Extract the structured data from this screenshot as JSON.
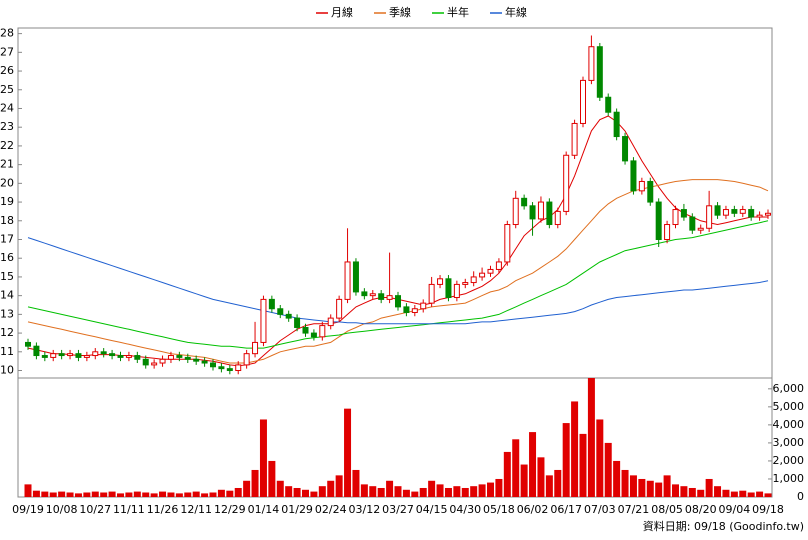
{
  "chart_data": [
    {
      "type": "candlestick",
      "categories": [
        "09/19",
        null,
        null,
        null,
        "10/08",
        null,
        null,
        null,
        "10/27",
        null,
        null,
        null,
        "11/11",
        null,
        null,
        null,
        "11/26",
        null,
        null,
        null,
        "12/11",
        null,
        null,
        null,
        "12/29",
        null,
        null,
        null,
        "01/14",
        null,
        null,
        null,
        "01/29",
        null,
        null,
        null,
        "02/24",
        null,
        null,
        null,
        "03/12",
        null,
        null,
        null,
        "03/27",
        null,
        null,
        null,
        "04/15",
        null,
        null,
        null,
        "04/30",
        null,
        null,
        null,
        "05/18",
        null,
        null,
        null,
        "06/02",
        null,
        null,
        null,
        "06/17",
        null,
        null,
        null,
        "07/03",
        null,
        null,
        null,
        "07/21",
        null,
        null,
        null,
        "08/05",
        null,
        null,
        null,
        "08/20",
        null,
        null,
        null,
        "09/04",
        null,
        null,
        null,
        "09/18"
      ],
      "open": [
        11.5,
        11.3,
        10.8,
        10.7,
        10.9,
        10.8,
        10.9,
        10.7,
        10.8,
        11.0,
        10.9,
        10.8,
        10.7,
        10.8,
        10.6,
        10.3,
        10.4,
        10.6,
        10.8,
        10.7,
        10.6,
        10.5,
        10.4,
        10.2,
        10.1,
        10.0,
        10.3,
        10.9,
        11.5,
        13.8,
        13.3,
        13.0,
        12.8,
        12.3,
        12.0,
        11.8,
        12.4,
        12.8,
        13.8,
        15.8,
        14.2,
        14.0,
        14.1,
        13.8,
        14.0,
        13.4,
        13.1,
        13.3,
        13.6,
        14.6,
        14.9,
        13.9,
        14.6,
        14.7,
        15.0,
        15.2,
        15.4,
        15.8,
        17.8,
        19.2,
        18.8,
        18.1,
        19.0,
        17.8,
        18.5,
        21.5,
        23.2,
        25.5,
        27.3,
        24.6,
        23.8,
        22.5,
        21.2,
        19.6,
        20.1,
        19.0,
        17.0,
        17.8,
        18.6,
        18.2,
        17.5,
        17.6,
        18.8,
        18.3,
        18.6,
        18.4,
        18.6,
        18.2,
        18.3
      ],
      "high": [
        11.7,
        11.5,
        11.0,
        11.1,
        11.1,
        11.1,
        11.1,
        11.0,
        11.2,
        11.2,
        11.1,
        11.0,
        11.0,
        11.0,
        10.8,
        10.6,
        10.8,
        11.0,
        11.0,
        10.9,
        10.8,
        10.7,
        10.6,
        10.4,
        10.3,
        10.5,
        11.1,
        12.6,
        14.0,
        14.0,
        13.5,
        13.2,
        13.0,
        12.5,
        12.2,
        12.6,
        13.0,
        14.0,
        17.6,
        16.0,
        14.4,
        14.3,
        14.3,
        16.3,
        14.2,
        13.6,
        13.5,
        13.8,
        15.0,
        15.1,
        15.1,
        14.8,
        14.9,
        15.3,
        15.5,
        15.6,
        16.0,
        18.0,
        19.6,
        19.4,
        19.0,
        19.3,
        19.2,
        18.7,
        21.7,
        23.4,
        25.7,
        27.9,
        27.5,
        24.8,
        24.0,
        22.7,
        21.4,
        20.3,
        20.3,
        19.2,
        18.0,
        18.8,
        18.9,
        18.4,
        17.8,
        19.6,
        19.0,
        18.8,
        18.8,
        18.8,
        18.8,
        18.5,
        18.6
      ],
      "low": [
        11.1,
        10.6,
        10.5,
        10.5,
        10.6,
        10.6,
        10.5,
        10.5,
        10.6,
        10.7,
        10.6,
        10.5,
        10.5,
        10.4,
        10.1,
        10.1,
        10.2,
        10.4,
        10.5,
        10.4,
        10.3,
        10.2,
        10.0,
        9.9,
        9.8,
        9.8,
        10.1,
        10.7,
        11.3,
        13.1,
        12.8,
        12.6,
        12.1,
        11.8,
        11.6,
        11.6,
        12.2,
        12.6,
        13.6,
        14.0,
        13.8,
        13.8,
        13.6,
        13.6,
        13.2,
        12.9,
        12.9,
        13.1,
        13.4,
        14.4,
        13.7,
        13.7,
        14.4,
        14.5,
        14.8,
        15.0,
        15.2,
        15.6,
        17.6,
        18.6,
        17.2,
        17.9,
        17.6,
        17.6,
        18.3,
        21.3,
        23.0,
        25.3,
        24.4,
        23.6,
        22.3,
        21.0,
        19.4,
        19.4,
        18.8,
        16.6,
        16.8,
        17.6,
        18.0,
        17.3,
        17.3,
        17.4,
        18.1,
        18.1,
        18.2,
        18.2,
        18.0,
        18.0,
        18.1
      ],
      "close": [
        11.3,
        10.8,
        10.7,
        10.9,
        10.8,
        10.9,
        10.7,
        10.8,
        11.0,
        10.9,
        10.8,
        10.7,
        10.8,
        10.6,
        10.3,
        10.4,
        10.6,
        10.8,
        10.7,
        10.6,
        10.5,
        10.4,
        10.2,
        10.1,
        10.0,
        10.3,
        10.9,
        11.5,
        13.8,
        13.3,
        13.0,
        12.8,
        12.3,
        12.0,
        11.8,
        12.4,
        12.8,
        13.8,
        15.8,
        14.2,
        14.0,
        14.1,
        13.8,
        14.0,
        13.4,
        13.1,
        13.3,
        13.6,
        14.6,
        14.9,
        13.9,
        14.6,
        14.7,
        15.0,
        15.2,
        15.4,
        15.8,
        17.8,
        19.2,
        18.8,
        18.1,
        19.0,
        17.8,
        18.5,
        21.5,
        23.2,
        25.5,
        27.3,
        24.6,
        23.8,
        22.5,
        21.2,
        19.6,
        20.1,
        19.0,
        17.0,
        17.8,
        18.6,
        18.2,
        17.5,
        17.6,
        18.8,
        18.3,
        18.6,
        18.4,
        18.6,
        18.2,
        18.3,
        18.4
      ],
      "up_color": "#e00000",
      "down_color": "#008800",
      "series": [
        {
          "name": "月線",
          "color": "#e00000",
          "values": [
            11.2,
            11.1,
            11.0,
            10.9,
            10.9,
            10.85,
            10.8,
            10.8,
            10.85,
            10.85,
            10.85,
            10.8,
            10.8,
            10.75,
            10.7,
            10.65,
            10.6,
            10.6,
            10.6,
            10.6,
            10.6,
            10.55,
            10.5,
            10.4,
            10.3,
            10.25,
            10.3,
            10.4,
            10.8,
            11.2,
            11.6,
            11.9,
            12.2,
            12.4,
            12.5,
            12.5,
            12.5,
            12.6,
            13.0,
            13.4,
            13.6,
            13.8,
            13.9,
            13.9,
            13.8,
            13.7,
            13.6,
            13.5,
            13.6,
            13.8,
            13.9,
            14.0,
            14.1,
            14.3,
            14.5,
            14.8,
            15.2,
            15.8,
            16.5,
            17.2,
            17.6,
            18.0,
            18.2,
            18.6,
            19.4,
            20.4,
            21.6,
            22.8,
            23.4,
            23.6,
            23.3,
            22.8,
            22.0,
            21.2,
            20.5,
            19.8,
            19.2,
            18.7,
            18.4,
            18.2,
            18.0,
            17.9,
            17.8,
            17.9,
            18.0,
            18.1,
            18.2,
            18.2,
            18.2
          ]
        },
        {
          "name": "季線",
          "color": "#e07020",
          "values": [
            12.6,
            12.5,
            12.4,
            12.3,
            12.2,
            12.1,
            12.0,
            11.9,
            11.8,
            11.7,
            11.6,
            11.5,
            11.4,
            11.3,
            11.2,
            11.1,
            11.0,
            10.9,
            10.85,
            10.8,
            10.75,
            10.7,
            10.6,
            10.5,
            10.4,
            10.4,
            10.4,
            10.5,
            10.6,
            10.8,
            11.0,
            11.1,
            11.2,
            11.3,
            11.3,
            11.4,
            11.5,
            11.8,
            12.1,
            12.3,
            12.5,
            12.6,
            12.8,
            12.9,
            13.0,
            13.1,
            13.2,
            13.3,
            13.4,
            13.45,
            13.5,
            13.55,
            13.6,
            13.8,
            14.0,
            14.2,
            14.3,
            14.5,
            14.8,
            15.0,
            15.2,
            15.5,
            15.8,
            16.1,
            16.5,
            17.0,
            17.5,
            18.0,
            18.5,
            18.9,
            19.2,
            19.4,
            19.6,
            19.7,
            19.8,
            19.9,
            20.0,
            20.1,
            20.15,
            20.2,
            20.2,
            20.2,
            20.2,
            20.15,
            20.1,
            20.0,
            19.9,
            19.8,
            19.6
          ]
        },
        {
          "name": "半年",
          "color": "#00c000",
          "values": [
            13.4,
            13.3,
            13.2,
            13.1,
            13.0,
            12.9,
            12.8,
            12.7,
            12.6,
            12.5,
            12.4,
            12.3,
            12.2,
            12.1,
            12.0,
            11.9,
            11.8,
            11.7,
            11.6,
            11.5,
            11.45,
            11.4,
            11.35,
            11.3,
            11.3,
            11.25,
            11.2,
            11.2,
            11.2,
            11.3,
            11.4,
            11.5,
            11.6,
            11.7,
            11.75,
            11.8,
            11.85,
            11.9,
            12.0,
            12.05,
            12.1,
            12.15,
            12.2,
            12.25,
            12.3,
            12.35,
            12.4,
            12.45,
            12.5,
            12.55,
            12.6,
            12.65,
            12.7,
            12.75,
            12.8,
            12.9,
            13.0,
            13.2,
            13.4,
            13.6,
            13.8,
            14.0,
            14.2,
            14.4,
            14.6,
            14.9,
            15.2,
            15.5,
            15.8,
            16.0,
            16.2,
            16.4,
            16.5,
            16.6,
            16.7,
            16.8,
            16.9,
            17.0,
            17.05,
            17.1,
            17.2,
            17.3,
            17.4,
            17.5,
            17.6,
            17.7,
            17.8,
            17.9,
            18.0
          ]
        },
        {
          "name": "年線",
          "color": "#2060d0",
          "values": [
            17.1,
            16.95,
            16.8,
            16.65,
            16.5,
            16.35,
            16.2,
            16.05,
            15.9,
            15.75,
            15.6,
            15.45,
            15.3,
            15.15,
            15.0,
            14.85,
            14.7,
            14.55,
            14.4,
            14.25,
            14.1,
            13.95,
            13.8,
            13.7,
            13.6,
            13.5,
            13.4,
            13.3,
            13.2,
            13.1,
            13.0,
            12.9,
            12.8,
            12.75,
            12.7,
            12.65,
            12.6,
            12.6,
            12.55,
            12.55,
            12.5,
            12.5,
            12.5,
            12.5,
            12.5,
            12.5,
            12.5,
            12.5,
            12.5,
            12.5,
            12.5,
            12.5,
            12.5,
            12.55,
            12.6,
            12.6,
            12.65,
            12.7,
            12.75,
            12.8,
            12.85,
            12.9,
            12.95,
            13.0,
            13.05,
            13.15,
            13.3,
            13.5,
            13.65,
            13.8,
            13.9,
            13.95,
            14.0,
            14.05,
            14.1,
            14.15,
            14.2,
            14.25,
            14.3,
            14.3,
            14.35,
            14.4,
            14.45,
            14.5,
            14.55,
            14.6,
            14.65,
            14.7,
            14.8
          ]
        }
      ],
      "ylim": [
        9.6,
        28.3
      ],
      "yticks": [
        10,
        11,
        12,
        13,
        14,
        15,
        16,
        17,
        18,
        19,
        20,
        21,
        22,
        23,
        24,
        25,
        26,
        27,
        28
      ],
      "grid": false
    },
    {
      "type": "bar",
      "color": "#e00000",
      "values": [
        700,
        350,
        300,
        250,
        300,
        250,
        200,
        250,
        300,
        250,
        300,
        200,
        250,
        300,
        250,
        200,
        300,
        250,
        200,
        250,
        300,
        200,
        250,
        400,
        350,
        500,
        900,
        1500,
        4300,
        2000,
        900,
        600,
        500,
        400,
        300,
        600,
        900,
        1200,
        4900,
        1500,
        700,
        600,
        500,
        900,
        600,
        400,
        300,
        500,
        900,
        700,
        500,
        600,
        500,
        600,
        700,
        800,
        1000,
        2500,
        3200,
        1800,
        3600,
        2200,
        1200,
        1500,
        4100,
        5300,
        3500,
        6600,
        4300,
        3000,
        2000,
        1500,
        1200,
        1000,
        900,
        800,
        1200,
        700,
        600,
        500,
        400,
        1000,
        600,
        400,
        300,
        350,
        250,
        300,
        200
      ],
      "ylim": [
        0,
        6600
      ],
      "yticks": [
        0,
        {
          "value": 1000,
          "label": "1,000"
        },
        {
          "value": 2000,
          "label": "2,000"
        },
        {
          "value": 3000,
          "label": "3,000"
        },
        {
          "value": 4000,
          "label": "4,000"
        },
        {
          "value": 5000,
          "label": "5,000"
        },
        {
          "value": 6000,
          "label": "6,000"
        }
      ]
    }
  ],
  "footer": "資料日期: 09/18 (Goodinfo.tw)"
}
